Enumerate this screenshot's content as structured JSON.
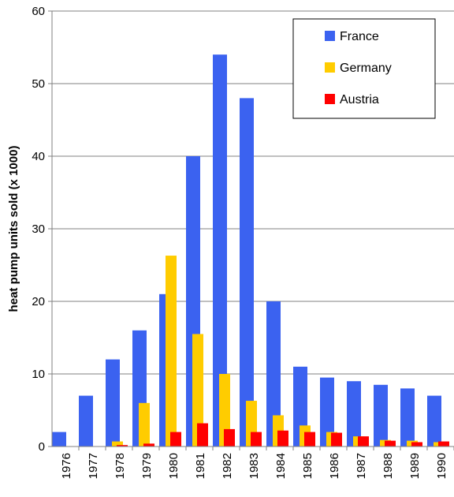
{
  "chart_data": {
    "type": "bar",
    "categories": [
      "1976",
      "1977",
      "1978",
      "1979",
      "1980",
      "1981",
      "1982",
      "1983",
      "1984",
      "1985",
      "1986",
      "1987",
      "1988",
      "1989",
      "1990"
    ],
    "series": [
      {
        "name": "France",
        "color": "#3b62f0",
        "values": [
          2,
          7,
          12,
          16,
          21,
          40,
          54,
          48,
          20,
          11,
          9.5,
          9,
          8.5,
          8,
          7
        ]
      },
      {
        "name": "Germany",
        "color": "#ffcc00",
        "values": [
          0,
          0,
          0.7,
          6,
          26.3,
          15.5,
          10,
          6.3,
          4.3,
          2.9,
          2,
          1.4,
          0.9,
          0.8,
          0.6
        ]
      },
      {
        "name": "Austria",
        "color": "#ff0000",
        "values": [
          0,
          0,
          0.2,
          0.4,
          2,
          3.2,
          2.4,
          2,
          2.2,
          2,
          1.9,
          1.4,
          0.8,
          0.6,
          0.7
        ]
      }
    ],
    "ylabel": "heat pump units sold (x 1000)",
    "xlabel": "",
    "ylim": [
      0,
      60
    ],
    "yticks": [
      "0",
      "10",
      "20",
      "30",
      "40",
      "50",
      "60"
    ],
    "grid": "horizontal",
    "legend_position": "top-right"
  }
}
